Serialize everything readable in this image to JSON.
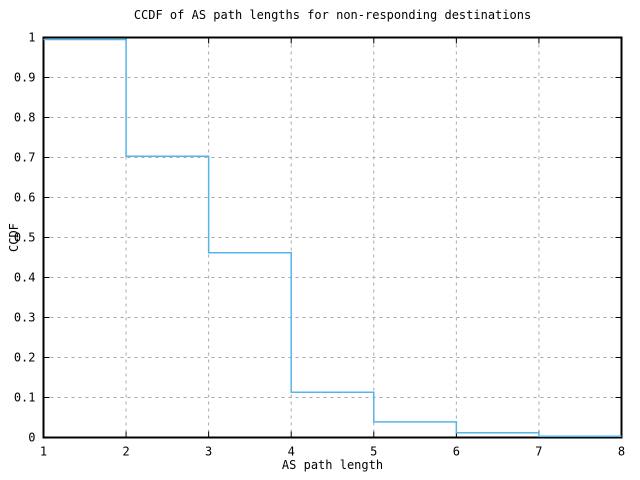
{
  "chart_data": {
    "type": "line",
    "style": "staircase (step) CCDF curve, no markers, no legend",
    "title": "CCDF of AS path lengths for non-responding destinations",
    "xlabel": "AS path length",
    "ylabel": "CCDF",
    "xlim": [
      1,
      8
    ],
    "ylim": [
      0,
      1
    ],
    "x_ticks": [
      1,
      2,
      3,
      4,
      5,
      6,
      7,
      8
    ],
    "x_tick_labels": [
      "1",
      "2",
      "3",
      "4",
      "5",
      "6",
      "7",
      "8"
    ],
    "y_ticks": [
      0,
      0.1,
      0.2,
      0.3,
      0.4,
      0.5,
      0.6,
      0.7,
      0.8,
      0.9,
      1
    ],
    "y_tick_labels": [
      "0",
      "0.1",
      "0.2",
      "0.3",
      "0.4",
      "0.5",
      "0.6",
      "0.7",
      "0.8",
      "0.9",
      "1"
    ],
    "grid": true,
    "grid_style": "dashed gray lines at interior ticks, mirrored inward tick marks on all four borders",
    "legend_position": "none",
    "series": [
      {
        "name": "CCDF",
        "step_x": [
          1,
          2,
          3,
          4,
          5,
          6,
          7
        ],
        "step_values": [
          0.995,
          0.703,
          0.462,
          0.113,
          0.039,
          0.012,
          0.003
        ],
        "segment_rule": "each value holds flat from its x to the next integer; last segment extends from 7 to 8",
        "color": "#56b4e9"
      }
    ],
    "colors": {
      "line": "#56b4e9",
      "grid": "#a8a8a8",
      "axis": "#000000",
      "background": "#ffffff",
      "text": "#000000"
    }
  }
}
